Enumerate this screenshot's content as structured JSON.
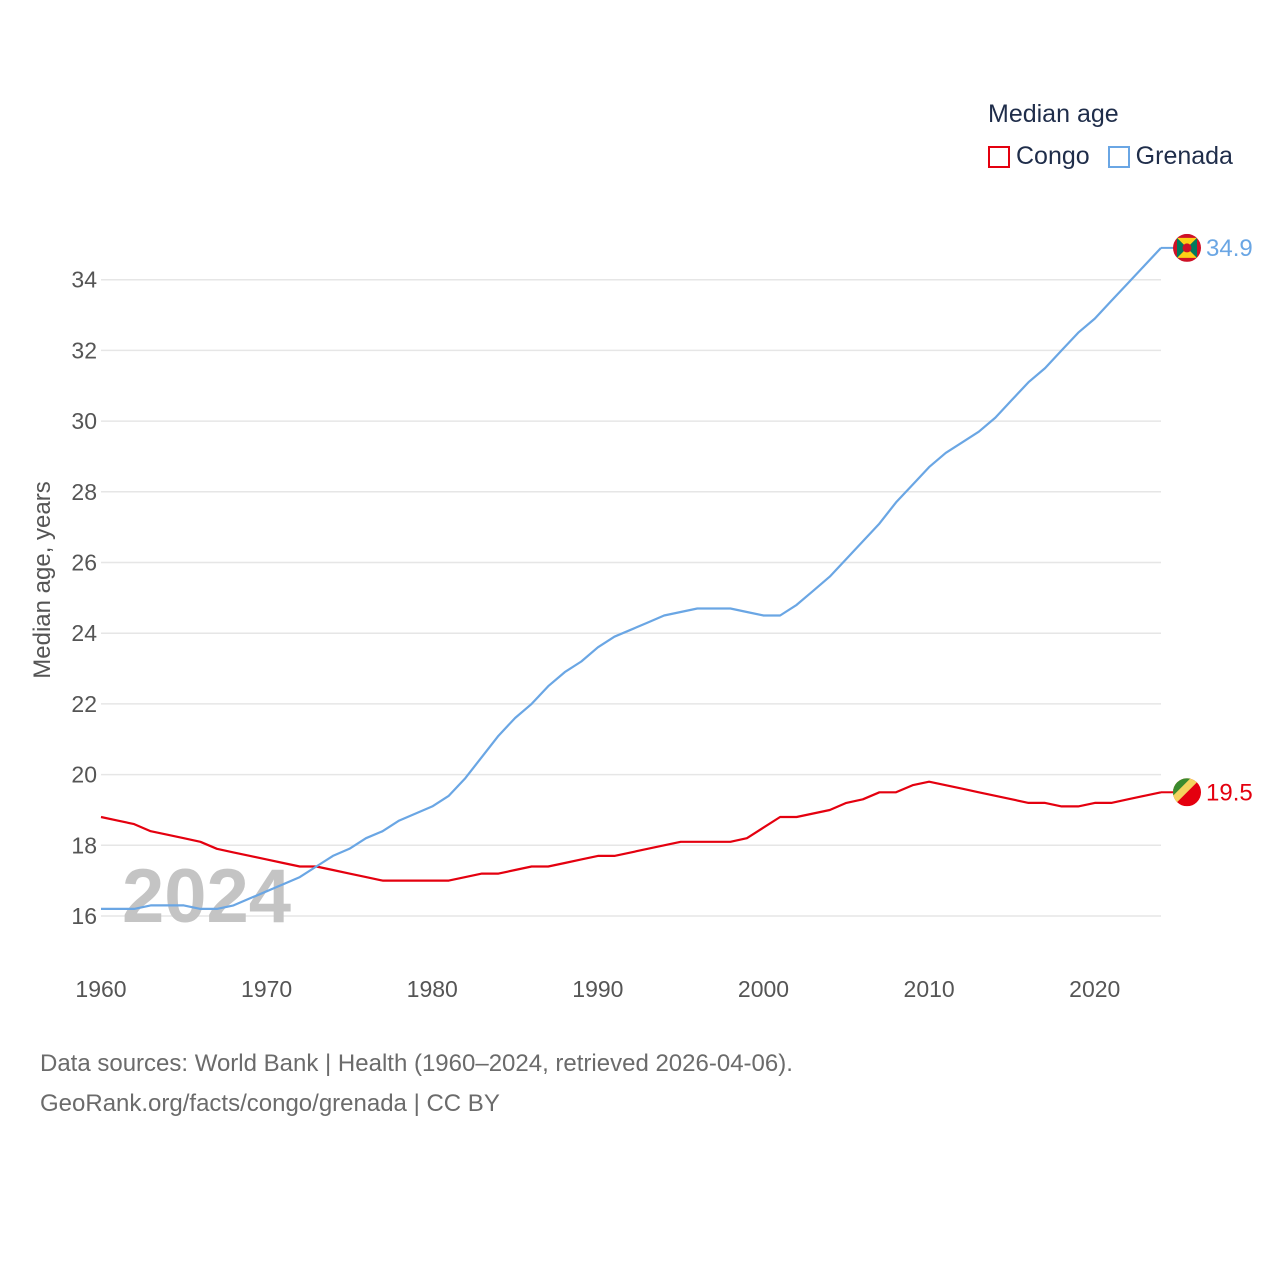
{
  "legend": {
    "title": "Median age",
    "items": [
      {
        "label": "Congo",
        "color": "#e4000f"
      },
      {
        "label": "Grenada",
        "color": "#6aa6e4"
      }
    ]
  },
  "watermark_year": "2024",
  "source": {
    "line1": "Data sources: World Bank | Health (1960–2024, retrieved 2026-04-06).",
    "line2": "GeoRank.org/facts/congo/grenada | CC BY"
  },
  "chart_data": {
    "type": "line",
    "title": "Median age",
    "xlabel": "",
    "ylabel": "Median age, years",
    "xlim": [
      1960,
      2024
    ],
    "ylim": [
      15.8,
      35
    ],
    "xticks": [
      1960,
      1970,
      1980,
      1990,
      2000,
      2010,
      2020
    ],
    "yticks": [
      16,
      18,
      20,
      22,
      24,
      26,
      28,
      30,
      32,
      34
    ],
    "grid": true,
    "legend_position": "top-right",
    "x": [
      1960,
      1961,
      1962,
      1963,
      1964,
      1965,
      1966,
      1967,
      1968,
      1969,
      1970,
      1971,
      1972,
      1973,
      1974,
      1975,
      1976,
      1977,
      1978,
      1979,
      1980,
      1981,
      1982,
      1983,
      1984,
      1985,
      1986,
      1987,
      1988,
      1989,
      1990,
      1991,
      1992,
      1993,
      1994,
      1995,
      1996,
      1997,
      1998,
      1999,
      2000,
      2001,
      2002,
      2003,
      2004,
      2005,
      2006,
      2007,
      2008,
      2009,
      2010,
      2011,
      2012,
      2013,
      2014,
      2015,
      2016,
      2017,
      2018,
      2019,
      2020,
      2021,
      2022,
      2023,
      2024
    ],
    "series": [
      {
        "name": "Congo",
        "color": "#e4000f",
        "end_label": "19.5",
        "values": [
          18.8,
          18.7,
          18.6,
          18.4,
          18.3,
          18.2,
          18.1,
          17.9,
          17.8,
          17.7,
          17.6,
          17.5,
          17.4,
          17.4,
          17.3,
          17.2,
          17.1,
          17.0,
          17.0,
          17.0,
          17.0,
          17.0,
          17.1,
          17.2,
          17.2,
          17.3,
          17.4,
          17.4,
          17.5,
          17.6,
          17.7,
          17.7,
          17.8,
          17.9,
          18.0,
          18.1,
          18.1,
          18.1,
          18.1,
          18.2,
          18.5,
          18.8,
          18.8,
          18.9,
          19.0,
          19.2,
          19.3,
          19.5,
          19.5,
          19.7,
          19.8,
          19.7,
          19.6,
          19.5,
          19.4,
          19.3,
          19.2,
          19.2,
          19.1,
          19.1,
          19.2,
          19.2,
          19.3,
          19.4,
          19.5
        ]
      },
      {
        "name": "Grenada",
        "color": "#6aa6e4",
        "end_label": "34.9",
        "values": [
          16.2,
          16.2,
          16.2,
          16.3,
          16.3,
          16.3,
          16.2,
          16.2,
          16.3,
          16.5,
          16.7,
          16.9,
          17.1,
          17.4,
          17.7,
          17.9,
          18.2,
          18.4,
          18.7,
          18.9,
          19.1,
          19.4,
          19.9,
          20.5,
          21.1,
          21.6,
          22.0,
          22.5,
          22.9,
          23.2,
          23.6,
          23.9,
          24.1,
          24.3,
          24.5,
          24.6,
          24.7,
          24.7,
          24.7,
          24.6,
          24.5,
          24.5,
          24.8,
          25.2,
          25.6,
          26.1,
          26.6,
          27.1,
          27.7,
          28.2,
          28.7,
          29.1,
          29.4,
          29.7,
          30.1,
          30.6,
          31.1,
          31.5,
          32.0,
          32.5,
          32.9,
          33.4,
          33.9,
          34.4,
          34.9
        ]
      }
    ]
  }
}
